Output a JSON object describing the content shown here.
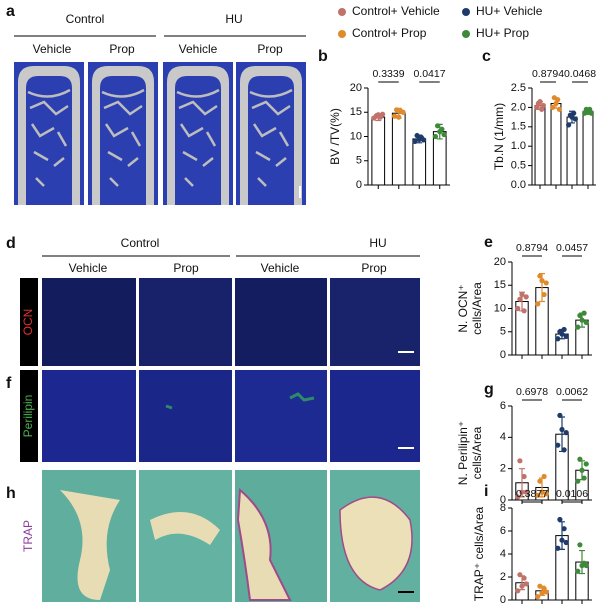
{
  "legend": [
    {
      "name": "Control+ Vehicle",
      "color": "#c0736a"
    },
    {
      "name": "Control+ Prop",
      "color": "#e08a2c"
    },
    {
      "name": "HU+ Vehicle",
      "color": "#1f3b6b"
    },
    {
      "name": "HU+ Prop",
      "color": "#3f8a3a"
    }
  ],
  "panel_a": {
    "label": "a",
    "groups": [
      "Control",
      "HU"
    ],
    "columns": [
      "Vehicle",
      "Prop",
      "Vehicle",
      "Prop"
    ]
  },
  "panel_d": {
    "label": "d",
    "groups": [
      "Control",
      "HU"
    ],
    "columns": [
      "Vehicle",
      "Prop",
      "Vehicle",
      "Prop"
    ],
    "stain": "OCN"
  },
  "panel_f": {
    "label": "f",
    "stain": "Perilipin"
  },
  "panel_h": {
    "label": "h",
    "stain": "TRAP"
  },
  "chart_data": [
    {
      "type": "bar",
      "panel": "b",
      "ylabel": [
        "BV /TV(%)"
      ],
      "ylim": [
        0,
        20
      ],
      "yticks": [
        0,
        5,
        10,
        15,
        20
      ],
      "values": [
        14,
        14.8,
        9.5,
        11
      ],
      "errors": [
        0.7,
        1.0,
        0.8,
        1.5
      ],
      "points": [
        [
          13.8,
          14.2,
          14.5,
          14.0,
          14.6
        ],
        [
          14.2,
          15.5,
          14.0,
          15.2,
          15.0
        ],
        [
          9.0,
          10.2,
          9.4,
          9.8,
          9.3
        ],
        [
          10.0,
          12.2,
          11.0,
          11.5,
          10.4
        ]
      ],
      "p_values": [
        "0.3339",
        "0.0417"
      ]
    },
    {
      "type": "bar",
      "panel": "c",
      "ylabel": [
        "Tb.N (1/mm)"
      ],
      "ylim": [
        0,
        2.5
      ],
      "yticks": [
        {
          "value": 0,
          "label": "0.0"
        },
        0.5,
        {
          "value": 1,
          "label": "1.0"
        },
        1.5,
        {
          "value": 2,
          "label": "2.0"
        },
        2.5
      ],
      "values": [
        2.05,
        2.1,
        1.75,
        1.9
      ],
      "errors": [
        0.1,
        0.12,
        0.15,
        0.08
      ],
      "points": [
        [
          2.0,
          2.1,
          2.15,
          1.95,
          2.05
        ],
        [
          2.0,
          2.25,
          2.1,
          2.2,
          1.95
        ],
        [
          1.55,
          1.8,
          1.75,
          1.85,
          1.7
        ],
        [
          1.85,
          1.95,
          1.9,
          1.95,
          1.85
        ]
      ],
      "p_values": [
        "0.8794",
        "0.0468"
      ]
    },
    {
      "type": "bar",
      "panel": "e",
      "ylabel": [
        "N. OCN⁺",
        "cells/Area"
      ],
      "ylim": [
        0,
        20
      ],
      "yticks": [
        0,
        5,
        10,
        15,
        20
      ],
      "values": [
        11.5,
        14.5,
        4.5,
        7.5
      ],
      "errors": [
        2,
        3,
        1,
        1.5
      ],
      "points": [
        [
          10,
          12,
          13,
          9.5,
          12.5
        ],
        [
          11,
          17,
          16,
          13,
          15.5
        ],
        [
          3.5,
          5,
          4.5,
          5.5,
          4
        ],
        [
          6,
          8.5,
          7.5,
          9,
          7
        ]
      ],
      "p_values": [
        "0.8794",
        "0.0457"
      ]
    },
    {
      "type": "bar",
      "panel": "g",
      "ylabel": [
        "N. Perilipin⁺",
        "cells/Area"
      ],
      "ylim": [
        0,
        6
      ],
      "yticks": [
        0,
        2,
        4,
        6
      ],
      "values": [
        1.1,
        0.8,
        4.2,
        1.9
      ],
      "errors": [
        0.9,
        0.6,
        1.1,
        0.6
      ],
      "points": [
        [
          0.2,
          2.5,
          0.5,
          1.5,
          0.5
        ],
        [
          0.3,
          1.2,
          0.5,
          1.5,
          0.4
        ],
        [
          3.5,
          5.4,
          4.5,
          3.2,
          4.3
        ],
        [
          1.2,
          2.6,
          1.9,
          1.4,
          2.3
        ]
      ],
      "p_values": [
        "0.6978",
        "0.0062"
      ]
    },
    {
      "type": "bar",
      "panel": "i",
      "ylabel": [
        "TRAP⁺ cells/Area"
      ],
      "ylim": [
        0,
        8
      ],
      "yticks": [
        0,
        2,
        4,
        6,
        8
      ],
      "values": [
        1.5,
        0.8,
        5.6,
        3.3
      ],
      "errors": [
        0.6,
        0.4,
        1.2,
        1.0
      ],
      "points": [
        [
          0.8,
          2.2,
          1.2,
          1.9,
          1.4
        ],
        [
          0.3,
          1.2,
          0.6,
          1.0,
          0.7
        ],
        [
          4.5,
          7.0,
          5.2,
          6.2,
          5.0
        ],
        [
          2.5,
          4.8,
          3.0,
          3.2,
          3.0
        ]
      ],
      "p_values": [
        "0.3877",
        "0.0106"
      ]
    }
  ]
}
